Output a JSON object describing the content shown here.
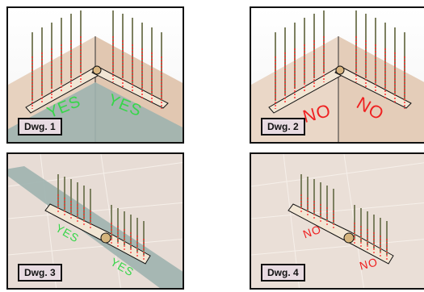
{
  "panels": [
    {
      "label": "Dwg. 1",
      "mark_left": "YES",
      "mark_right": "YES"
    },
    {
      "label": "Dwg. 2",
      "mark_left": "NO",
      "mark_right": "NO"
    },
    {
      "label": "Dwg. 3",
      "mark_left": "YES",
      "mark_right": "YES"
    },
    {
      "label": "Dwg. 4",
      "mark_left": "NO",
      "mark_right": "NO"
    }
  ],
  "colors": {
    "yes": "#37d64a",
    "no": "#ef2020",
    "screw": "#7d8060",
    "arrow": "#ff2f2f",
    "hip_cover": "#9fb3af"
  }
}
